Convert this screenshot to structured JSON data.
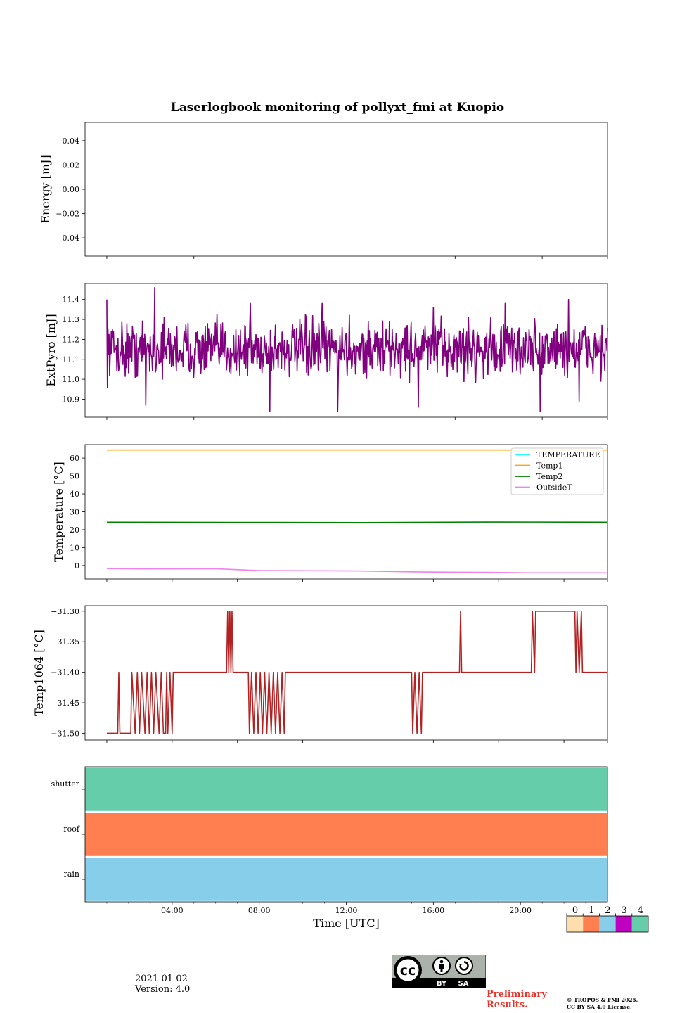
{
  "title": "Laserlogbook monitoring of pollyxt_fmi at Kuopio",
  "footer": {
    "date": "2021-01-02",
    "version": "Version: 4.0",
    "preliminary_line1": "Preliminary",
    "preliminary_line2": "Results.",
    "copyright_line1": "© TROPOS & FMI 2025.",
    "copyright_line2": "CC BY SA 4.0 License.",
    "cc_by": "BY",
    "cc_sa": "SA"
  },
  "chart_data": [
    {
      "id": "energy",
      "type": "line",
      "ylabel": "Energy [mJ]",
      "ylim": [
        -0.055,
        0.055
      ],
      "yticks": [
        {
          "v": 0.04,
          "label": "0.04"
        },
        {
          "v": 0.02,
          "label": "0.02"
        },
        {
          "v": 0.0,
          "label": "0.00"
        },
        {
          "v": -0.02,
          "label": "−0.02"
        },
        {
          "v": -0.04,
          "label": "−0.04"
        }
      ],
      "xlim": [
        -0.5,
        23.5
      ],
      "xticks": [
        0.5,
        4.5,
        8.5,
        12.5,
        16.5,
        20.5,
        23.5
      ],
      "series": []
    },
    {
      "id": "extpyro",
      "type": "line",
      "ylabel": "ExtPyro [mJ]",
      "ylim": [
        10.81,
        11.48
      ],
      "yticks": [
        {
          "v": 11.4,
          "label": "11.4"
        },
        {
          "v": 11.3,
          "label": "11.3"
        },
        {
          "v": 11.2,
          "label": "11.2"
        },
        {
          "v": 11.1,
          "label": "11.1"
        },
        {
          "v": 11.0,
          "label": "11.0"
        },
        {
          "v": 10.9,
          "label": "10.9"
        }
      ],
      "xlim": [
        -0.5,
        23.5
      ],
      "xticks": [
        0.5,
        4.5,
        8.5,
        12.5,
        16.5,
        20.5,
        23.5
      ],
      "series": [
        {
          "name": "ExtPyro",
          "color": "#800080",
          "x_start": 0.5,
          "x_end": 23.5,
          "mean": 11.15,
          "spread": 0.17,
          "min": 10.84,
          "max": 11.46,
          "peaks": [
            [
              0.5,
              11.4
            ],
            [
              2.7,
              11.46
            ],
            [
              7.1,
              11.38
            ],
            [
              10.4,
              11.38
            ],
            [
              15.5,
              11.36
            ],
            [
              18.8,
              11.38
            ],
            [
              21.7,
              11.4
            ]
          ],
          "dips": [
            [
              2.3,
              10.87
            ],
            [
              8.0,
              10.84
            ],
            [
              11.1,
              10.84
            ],
            [
              14.8,
              10.86
            ],
            [
              20.4,
              10.84
            ],
            [
              22.2,
              10.89
            ]
          ]
        }
      ]
    },
    {
      "id": "temperature",
      "type": "line",
      "ylabel": "Temperature [°C]",
      "ylim": [
        -7.5,
        67.5
      ],
      "yticks": [
        {
          "v": 60,
          "label": "60"
        },
        {
          "v": 50,
          "label": "50"
        },
        {
          "v": 40,
          "label": "40"
        },
        {
          "v": 30,
          "label": "30"
        },
        {
          "v": 20,
          "label": "20"
        },
        {
          "v": 10,
          "label": "10"
        },
        {
          "v": 0,
          "label": "0"
        }
      ],
      "xlim": [
        -0.5,
        23.5
      ],
      "xticks": [
        0.5,
        3.5,
        6.5,
        9.5,
        12.5,
        15.5,
        18.5,
        21.5,
        23.5
      ],
      "legend": "top-right",
      "series": [
        {
          "name": "TEMPERATURE",
          "color": "#00ffff",
          "points": []
        },
        {
          "name": "Temp1",
          "color": "#ffa500",
          "points": [
            [
              0.5,
              64.5
            ],
            [
              23.5,
              64.5
            ]
          ]
        },
        {
          "name": "Temp2",
          "color": "#008000",
          "points": [
            [
              0.5,
              24.2
            ],
            [
              6,
              24.1
            ],
            [
              12,
              24.0
            ],
            [
              18,
              24.3
            ],
            [
              23.5,
              24.2
            ]
          ]
        },
        {
          "name": "OutsideT",
          "color": "#ee82ee",
          "points": [
            [
              0.5,
              -1.7
            ],
            [
              2,
              -1.9
            ],
            [
              5.5,
              -1.8
            ],
            [
              7.5,
              -2.8
            ],
            [
              12,
              -3.0
            ],
            [
              15,
              -3.6
            ],
            [
              18,
              -3.8
            ],
            [
              20,
              -4.1
            ],
            [
              23.5,
              -4.1
            ]
          ]
        }
      ]
    },
    {
      "id": "temp1064",
      "type": "line",
      "ylabel": "Temp1064 [°C]",
      "ylim": [
        -31.511,
        -31.291
      ],
      "yticks": [
        {
          "v": -31.3,
          "label": "−31.30"
        },
        {
          "v": -31.35,
          "label": "−31.35"
        },
        {
          "v": -31.4,
          "label": "−31.40"
        },
        {
          "v": -31.45,
          "label": "−31.45"
        },
        {
          "v": -31.5,
          "label": "−31.50"
        }
      ],
      "xlim": [
        -0.5,
        23.5
      ],
      "xticks": [
        0.5,
        3.5,
        6.5,
        9.5,
        12.5,
        15.5,
        18.5,
        21.5,
        23.5
      ],
      "series": [
        {
          "name": "Temp1064",
          "color": "#b22222",
          "points": [
            [
              0.5,
              -31.5
            ],
            [
              1.0,
              -31.5
            ],
            [
              1.05,
              -31.4
            ],
            [
              1.1,
              -31.5
            ],
            [
              1.6,
              -31.5
            ],
            [
              1.65,
              -31.4
            ],
            [
              1.8,
              -31.5
            ],
            [
              1.9,
              -31.4
            ],
            [
              2.0,
              -31.5
            ],
            [
              2.1,
              -31.4
            ],
            [
              2.25,
              -31.5
            ],
            [
              2.35,
              -31.4
            ],
            [
              2.45,
              -31.5
            ],
            [
              2.55,
              -31.4
            ],
            [
              2.65,
              -31.5
            ],
            [
              2.75,
              -31.4
            ],
            [
              2.9,
              -31.5
            ],
            [
              3.0,
              -31.4
            ],
            [
              3.1,
              -31.5
            ],
            [
              3.2,
              -31.5
            ],
            [
              3.25,
              -31.4
            ],
            [
              3.3,
              -31.5
            ],
            [
              3.4,
              -31.4
            ],
            [
              3.5,
              -31.5
            ],
            [
              3.55,
              -31.4
            ],
            [
              6.0,
              -31.4
            ],
            [
              6.05,
              -31.3
            ],
            [
              6.1,
              -31.4
            ],
            [
              6.15,
              -31.3
            ],
            [
              6.2,
              -31.4
            ],
            [
              6.25,
              -31.3
            ],
            [
              6.3,
              -31.4
            ],
            [
              7.0,
              -31.4
            ],
            [
              7.05,
              -31.5
            ],
            [
              7.15,
              -31.4
            ],
            [
              7.25,
              -31.5
            ],
            [
              7.35,
              -31.4
            ],
            [
              7.45,
              -31.5
            ],
            [
              7.55,
              -31.4
            ],
            [
              7.65,
              -31.5
            ],
            [
              7.75,
              -31.4
            ],
            [
              7.85,
              -31.5
            ],
            [
              7.95,
              -31.4
            ],
            [
              8.05,
              -31.5
            ],
            [
              8.15,
              -31.4
            ],
            [
              8.25,
              -31.5
            ],
            [
              8.35,
              -31.4
            ],
            [
              8.45,
              -31.5
            ],
            [
              8.55,
              -31.4
            ],
            [
              8.65,
              -31.5
            ],
            [
              8.7,
              -31.4
            ],
            [
              14.5,
              -31.4
            ],
            [
              14.55,
              -31.5
            ],
            [
              14.65,
              -31.4
            ],
            [
              14.75,
              -31.5
            ],
            [
              14.85,
              -31.4
            ],
            [
              14.95,
              -31.5
            ],
            [
              15.0,
              -31.4
            ],
            [
              16.7,
              -31.4
            ],
            [
              16.75,
              -31.3
            ],
            [
              16.8,
              -31.4
            ],
            [
              20.0,
              -31.4
            ],
            [
              20.05,
              -31.3
            ],
            [
              20.15,
              -31.4
            ],
            [
              20.2,
              -31.3
            ],
            [
              22.0,
              -31.3
            ],
            [
              22.05,
              -31.4
            ],
            [
              22.1,
              -31.3
            ],
            [
              22.2,
              -31.4
            ],
            [
              22.3,
              -31.3
            ],
            [
              22.35,
              -31.4
            ],
            [
              23.5,
              -31.4
            ]
          ]
        }
      ]
    },
    {
      "id": "status",
      "type": "heatmap",
      "categories": [
        "shutter",
        "roof",
        "rain"
      ],
      "values": [
        4,
        1,
        2
      ],
      "xlabel": "Time [UTC]",
      "xlim": [
        0,
        24
      ],
      "xticks": [
        {
          "v": 4,
          "label": "04:00"
        },
        {
          "v": 8,
          "label": "08:00"
        },
        {
          "v": 12,
          "label": "12:00"
        },
        {
          "v": 16,
          "label": "16:00"
        },
        {
          "v": 20,
          "label": "20:00"
        }
      ],
      "minor_xticks": [
        1,
        2,
        3,
        5,
        6,
        7,
        9,
        10,
        11,
        13,
        14,
        15,
        17,
        18,
        19,
        21,
        22,
        23
      ],
      "colorbar": [
        {
          "label": "0",
          "color": "#ffdead"
        },
        {
          "label": "1",
          "color": "#ff7f50"
        },
        {
          "label": "2",
          "color": "#87ceeb"
        },
        {
          "label": "3",
          "color": "#c000c0"
        },
        {
          "label": "4",
          "color": "#66cdaa"
        }
      ]
    }
  ]
}
